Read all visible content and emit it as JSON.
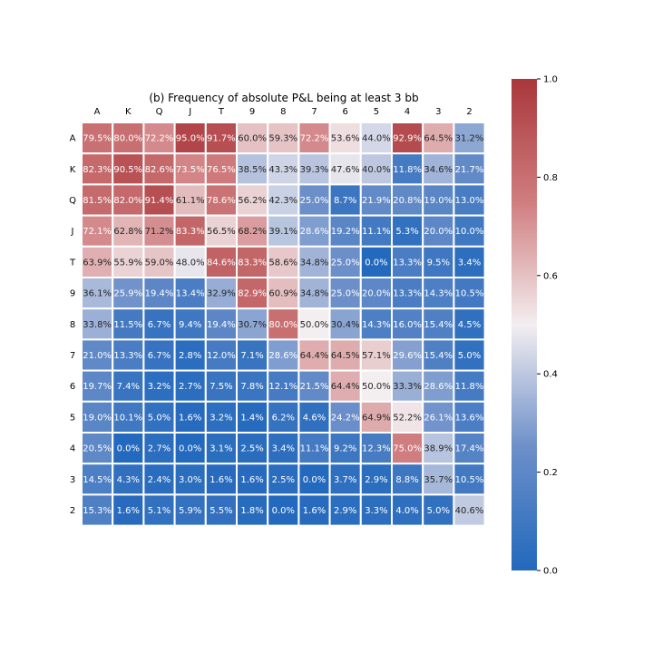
{
  "chart_data": {
    "type": "heatmap",
    "title": "(b) Frequency of absolute P&L being at least 3 bb",
    "x_labels": [
      "A",
      "K",
      "Q",
      "J",
      "T",
      "9",
      "8",
      "7",
      "6",
      "5",
      "4",
      "3",
      "2"
    ],
    "y_labels": [
      "A",
      "K",
      "Q",
      "J",
      "T",
      "9",
      "8",
      "7",
      "6",
      "5",
      "4",
      "3",
      "2"
    ],
    "values": [
      [
        79.5,
        80.0,
        72.2,
        95.0,
        91.7,
        60.0,
        59.3,
        72.2,
        53.6,
        44.0,
        92.9,
        64.5,
        31.2
      ],
      [
        82.3,
        90.5,
        82.6,
        73.5,
        76.5,
        38.5,
        43.3,
        39.3,
        47.6,
        40.0,
        11.8,
        34.6,
        21.7
      ],
      [
        81.5,
        82.0,
        91.4,
        61.1,
        78.6,
        56.2,
        42.3,
        25.0,
        8.7,
        21.9,
        20.8,
        19.0,
        13.0
      ],
      [
        72.1,
        62.8,
        71.2,
        83.3,
        56.5,
        68.2,
        39.1,
        28.6,
        19.2,
        11.1,
        5.3,
        20.0,
        10.0
      ],
      [
        63.9,
        55.9,
        59.0,
        48.0,
        84.6,
        83.3,
        58.6,
        34.8,
        25.0,
        0.0,
        13.3,
        9.5,
        3.4
      ],
      [
        36.1,
        25.9,
        19.4,
        13.4,
        32.9,
        82.9,
        60.9,
        34.8,
        25.0,
        20.0,
        13.3,
        14.3,
        10.5
      ],
      [
        33.8,
        11.5,
        6.7,
        9.4,
        19.4,
        30.7,
        80.0,
        50.0,
        30.4,
        14.3,
        16.0,
        15.4,
        4.5
      ],
      [
        21.0,
        13.3,
        6.7,
        2.8,
        12.0,
        7.1,
        28.6,
        64.4,
        64.5,
        57.1,
        29.6,
        15.4,
        5.0
      ],
      [
        19.7,
        7.4,
        3.2,
        2.7,
        7.5,
        7.8,
        12.1,
        21.5,
        64.4,
        50.0,
        33.3,
        28.6,
        11.8
      ],
      [
        19.0,
        10.1,
        5.0,
        1.6,
        3.2,
        1.4,
        6.2,
        4.6,
        24.2,
        64.9,
        52.2,
        26.1,
        13.6
      ],
      [
        20.5,
        0.0,
        2.7,
        0.0,
        3.1,
        2.5,
        3.4,
        11.1,
        9.2,
        12.3,
        75.0,
        38.9,
        17.4
      ],
      [
        14.5,
        4.3,
        2.4,
        3.0,
        1.6,
        1.6,
        2.5,
        0.0,
        3.7,
        2.9,
        8.8,
        35.7,
        10.5
      ],
      [
        15.3,
        1.6,
        5.1,
        5.9,
        5.5,
        1.8,
        0.0,
        1.6,
        2.9,
        3.3,
        4.0,
        5.0,
        40.6
      ]
    ],
    "value_suffix": "%",
    "colormap": "vlag",
    "colorbar": {
      "range": [
        0.0,
        1.0
      ],
      "ticks": [
        "0.0",
        "0.2",
        "0.4",
        "0.6",
        "0.8",
        "1.0"
      ]
    },
    "grid": false,
    "legend": "colorbar-right",
    "colors": {
      "low": "#2369bd",
      "mid": "#f3eef0",
      "high": "#a9373b",
      "cell_border": "#ffffff"
    }
  }
}
